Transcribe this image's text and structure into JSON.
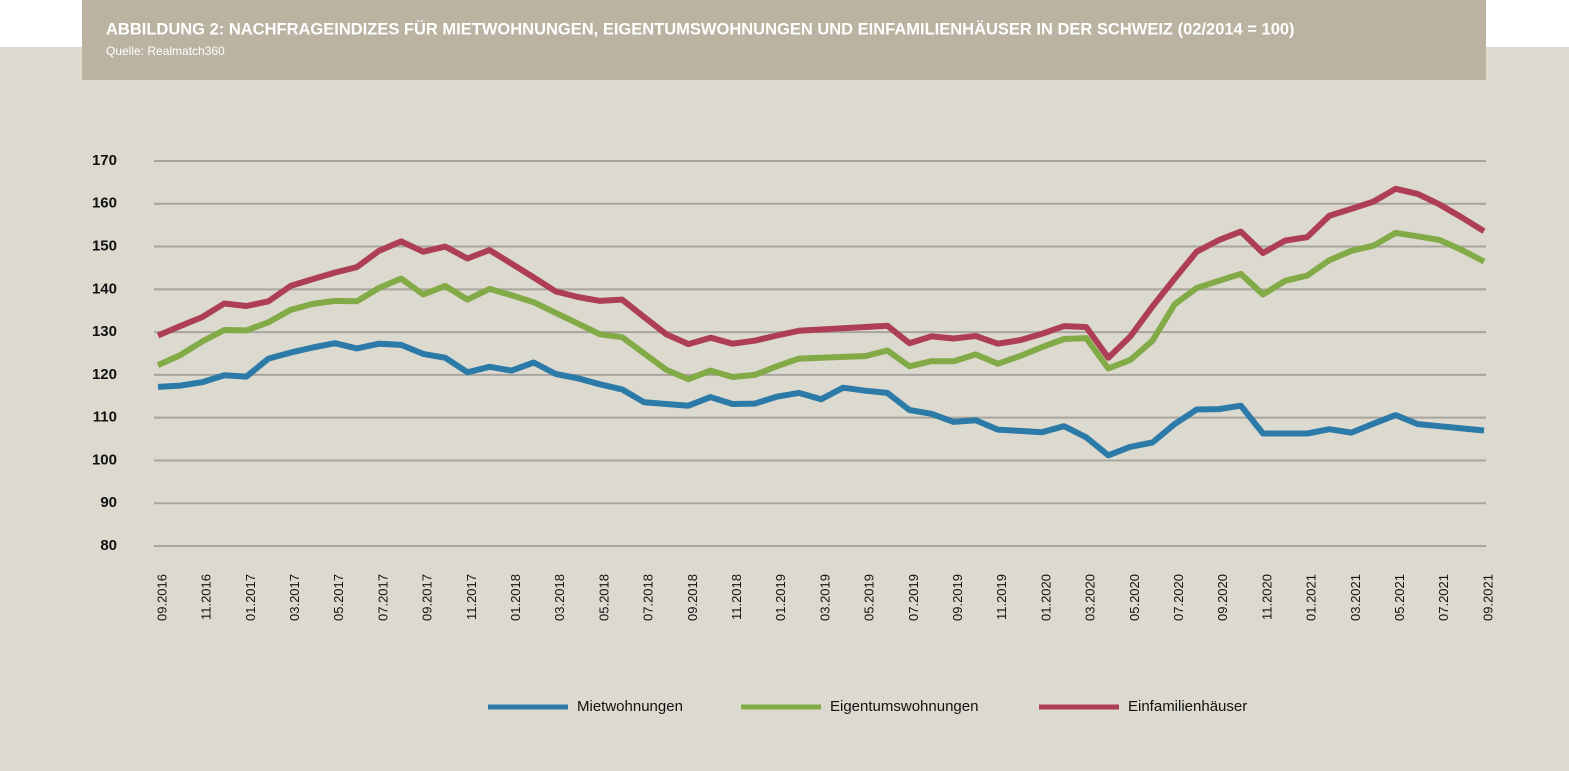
{
  "chart_data": {
    "type": "line",
    "title": "ABBILDUNG 2: NACHFRAGEINDIZES FÜR MIETWOHNUNGEN, EIGENTUMSWOHNUNGEN UND EINFAMILIENHÄUSER IN DER SCHWEIZ (02/2014 = 100)",
    "subtitle": "Quelle: Realmatch360",
    "categories": [
      "09.2016",
      null,
      "11.2016",
      null,
      "01.2017",
      null,
      "03.2017",
      null,
      "05.2017",
      null,
      "07.2017",
      null,
      "09.2017",
      null,
      "11.2017",
      null,
      "01.2018",
      null,
      "03.2018",
      null,
      "05.2018",
      null,
      "07.2018",
      null,
      "09.2018",
      null,
      "11.2018",
      null,
      "01.2019",
      null,
      "03.2019",
      null,
      "05.2019",
      null,
      "07.2019",
      null,
      "09.2019",
      null,
      "11.2019",
      null,
      "01.2020",
      null,
      "03.2020",
      null,
      "05.2020",
      null,
      "07.2020",
      null,
      "09.2020",
      null,
      "11.2020",
      null,
      "01.2021",
      null,
      "03.2021",
      null,
      "05.2021",
      null,
      "07.2021",
      null,
      "09.2021"
    ],
    "series": [
      {
        "name": "Mietwohnungen",
        "color": "#2b7aa8",
        "values": [
          117.2,
          117.5,
          118.3,
          119.9,
          119.6,
          123.8,
          125.2,
          126.4,
          127.4,
          126.2,
          127.3,
          127,
          124.9,
          124,
          120.6,
          121.9,
          121,
          122.9,
          120.2,
          119.2,
          117.8,
          116.6,
          113.6,
          113.2,
          112.8,
          114.8,
          113.2,
          113.3,
          114.9,
          115.8,
          114.3,
          117,
          116.3,
          115.8,
          111.8,
          110.9,
          109,
          109.4,
          107.2,
          106.9,
          106.6,
          108,
          105.4,
          101.2,
          103.2,
          104.2,
          108.5,
          111.9,
          112,
          112.8,
          106.3,
          106.3,
          106.3,
          107.3,
          106.5,
          108.6,
          110.6,
          108.5,
          108,
          107.5,
          107
        ]
      },
      {
        "name": "Eigentumswohnungen",
        "color": "#82aa46",
        "values": [
          122.3,
          124.6,
          127.8,
          130.5,
          130.4,
          132.3,
          135.2,
          136.6,
          137.3,
          137.2,
          140.3,
          142.5,
          138.8,
          140.8,
          137.6,
          140.1,
          138.6,
          137,
          134.5,
          132,
          129.5,
          128.8,
          125,
          121.2,
          119,
          121,
          119.5,
          120,
          122,
          123.8,
          124,
          124.2,
          124.4,
          125.7,
          122,
          123.2,
          123.2,
          124.8,
          122.6,
          124.4,
          126.5,
          128.4,
          128.6,
          121.5,
          123.5,
          128,
          136.5,
          140.3,
          142,
          143.6,
          138.8,
          142,
          143.2,
          146.8,
          149,
          150.2,
          153.2,
          152.4,
          151.5,
          149.2,
          146.5
        ]
      },
      {
        "name": "Einfamilienhäuser",
        "color": "#ad3e55",
        "values": [
          129.2,
          131.4,
          133.5,
          136.7,
          136.1,
          137.2,
          140.8,
          142.4,
          143.9,
          145.2,
          149,
          151.2,
          148.8,
          150,
          147.2,
          149.2,
          146,
          142.8,
          139.5,
          138.2,
          137.3,
          137.6,
          133.5,
          129.5,
          127.2,
          128.7,
          127.3,
          128,
          129.2,
          130.3,
          130.6,
          130.9,
          131.2,
          131.5,
          127.4,
          129,
          128.5,
          129.1,
          127.3,
          128.1,
          129.6,
          131.4,
          131.2,
          124,
          129,
          136,
          142.5,
          148.8,
          151.5,
          153.5,
          148.5,
          151.4,
          152.2,
          157.2,
          158.8,
          160.5,
          163.5,
          162.3,
          159.8,
          156.8,
          153.6
        ]
      }
    ],
    "ylim": [
      80,
      170
    ],
    "yticks": [
      80,
      90,
      100,
      110,
      120,
      130,
      140,
      150,
      160,
      170
    ],
    "grid": true,
    "legend": "bottom"
  }
}
